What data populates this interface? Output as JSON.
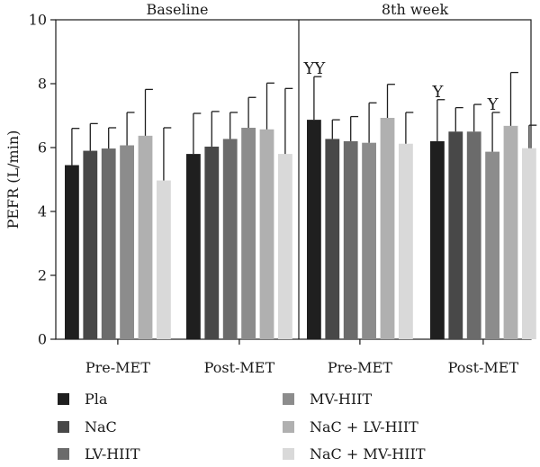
{
  "chart_data": {
    "type": "bar",
    "ylabel": "PEFR (L/min)",
    "ylim": [
      0,
      10
    ],
    "yticks": [
      0,
      2,
      4,
      6,
      8,
      10
    ],
    "panels": [
      {
        "title": "Baseline",
        "groups": [
          {
            "label": "Pre-MET",
            "values": [
              5.45,
              5.9,
              5.97,
              6.07,
              6.37,
              4.97
            ],
            "errors": [
              1.15,
              0.85,
              0.65,
              1.03,
              1.45,
              1.65
            ],
            "annotations": []
          },
          {
            "label": "Post-MET",
            "values": [
              5.8,
              6.03,
              6.27,
              6.62,
              6.57,
              5.8
            ],
            "errors": [
              1.27,
              1.1,
              0.83,
              0.95,
              1.45,
              2.05
            ],
            "annotations": []
          }
        ]
      },
      {
        "title": "8th week",
        "groups": [
          {
            "label": "Pre-MET",
            "values": [
              6.87,
              6.27,
              6.2,
              6.15,
              6.93,
              6.12
            ],
            "errors": [
              1.35,
              0.6,
              0.77,
              1.25,
              1.05,
              0.98
            ],
            "annotations": [
              {
                "series": 0,
                "text": "YY"
              }
            ]
          },
          {
            "label": "Post-MET",
            "values": [
              6.2,
              6.5,
              6.5,
              5.87,
              6.68,
              5.98
            ],
            "errors": [
              1.3,
              0.75,
              0.85,
              1.23,
              1.67,
              0.72
            ],
            "annotations": [
              {
                "series": 0,
                "text": "Y"
              },
              {
                "series": 3,
                "text": "Y"
              }
            ]
          }
        ]
      }
    ],
    "series": [
      {
        "name": "Pla",
        "color": "#1f1f1f"
      },
      {
        "name": "NaC",
        "color": "#484848"
      },
      {
        "name": "LV-HIIT",
        "color": "#6b6b6b"
      },
      {
        "name": "MV-HIIT",
        "color": "#8c8c8c"
      },
      {
        "name": "NaC + LV-HIIT",
        "color": "#b0b0b0"
      },
      {
        "name": "NaC + MV-HIIT",
        "color": "#d9d9d9"
      }
    ],
    "legend_position": "bottom"
  }
}
